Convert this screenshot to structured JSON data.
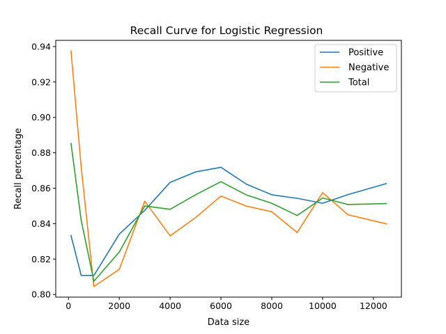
{
  "chart_data": {
    "type": "line",
    "title": "Recall Curve for Logistic Regression",
    "xlabel": "Data size",
    "ylabel": "Recall percentage",
    "xlim": [
      -500,
      13100
    ],
    "ylim": [
      0.7985,
      0.9435
    ],
    "xticks": [
      0,
      2000,
      4000,
      6000,
      8000,
      10000,
      12000
    ],
    "yticks": [
      0.8,
      0.82,
      0.84,
      0.86,
      0.88,
      0.9,
      0.92,
      0.94
    ],
    "ytick_labels": [
      "0.80",
      "0.82",
      "0.84",
      "0.86",
      "0.88",
      "0.90",
      "0.92",
      "0.94"
    ],
    "grid": false,
    "legend_position": "top-right",
    "x": [
      100,
      500,
      1000,
      2000,
      3000,
      4000,
      5000,
      6000,
      7000,
      8000,
      9000,
      10000,
      11000,
      12500
    ],
    "series": [
      {
        "name": "Positive",
        "color": "#1f77b4",
        "values": [
          0.8333,
          0.8108,
          0.8107,
          0.8341,
          0.8475,
          0.8633,
          0.8692,
          0.8718,
          0.8623,
          0.8563,
          0.8543,
          0.8515,
          0.8564,
          0.8626
        ]
      },
      {
        "name": "Negative",
        "color": "#ff7f0e",
        "values": [
          0.9375,
          0.872,
          0.8045,
          0.8142,
          0.8527,
          0.8331,
          0.8434,
          0.8556,
          0.8499,
          0.8467,
          0.835,
          0.8575,
          0.845,
          0.8399
        ]
      },
      {
        "name": "Total",
        "color": "#2ca02c",
        "values": [
          0.8853,
          0.842,
          0.8075,
          0.824,
          0.85,
          0.8481,
          0.8563,
          0.8637,
          0.8562,
          0.8515,
          0.8446,
          0.8545,
          0.8508,
          0.8513
        ]
      }
    ]
  }
}
